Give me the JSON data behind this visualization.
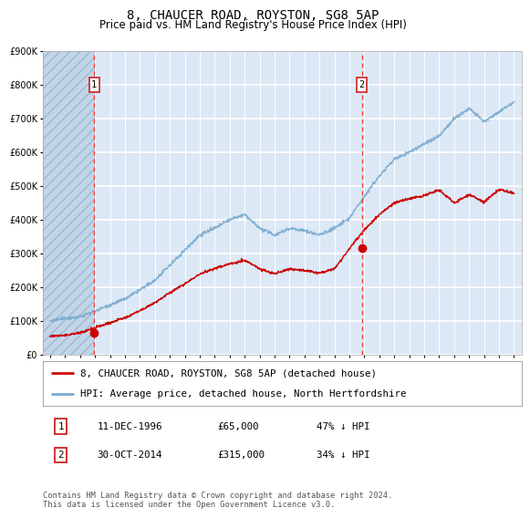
{
  "title": "8, CHAUCER ROAD, ROYSTON, SG8 5AP",
  "subtitle": "Price paid vs. HM Land Registry's House Price Index (HPI)",
  "legend_line1": "8, CHAUCER ROAD, ROYSTON, SG8 5AP (detached house)",
  "legend_line2": "HPI: Average price, detached house, North Hertfordshire",
  "footnote": "Contains HM Land Registry data © Crown copyright and database right 2024.\nThis data is licensed under the Open Government Licence v3.0.",
  "ylim": [
    0,
    900000
  ],
  "yticks": [
    0,
    100000,
    200000,
    300000,
    400000,
    500000,
    600000,
    700000,
    800000,
    900000
  ],
  "ytick_labels": [
    "£0",
    "£100K",
    "£200K",
    "£300K",
    "£400K",
    "£500K",
    "£600K",
    "£700K",
    "£800K",
    "£900K"
  ],
  "xlim_start": 1993.5,
  "xlim_end": 2025.5,
  "purchase1_year": 1996.95,
  "purchase1_price": 65000,
  "purchase1_label": "1",
  "purchase1_info": "11-DEC-1996",
  "purchase1_price_str": "£65,000",
  "purchase1_hpi": "47% ↓ HPI",
  "purchase2_year": 2014.83,
  "purchase2_price": 315000,
  "purchase2_label": "2",
  "purchase2_info": "30-OCT-2014",
  "purchase2_price_str": "£315,000",
  "purchase2_hpi": "34% ↓ HPI",
  "line_color_red": "#cc0000",
  "line_color_blue": "#7aaad0",
  "dot_color": "#cc0000",
  "vline_color": "#ee3333",
  "background_color": "#dce8f5",
  "grid_color": "#ffffff",
  "title_fontsize": 10,
  "subtitle_fontsize": 8.5,
  "tick_fontsize": 7,
  "hpi_data_years": [
    1994,
    1995,
    1996,
    1997,
    1998,
    1999,
    2000,
    2001,
    2002,
    2003,
    2004,
    2005,
    2006,
    2007,
    2008,
    2009,
    2010,
    2011,
    2012,
    2013,
    2014,
    2015,
    2016,
    2017,
    2018,
    2019,
    2020,
    2021,
    2022,
    2023,
    2024,
    2025
  ],
  "hpi_values": [
    100000,
    108000,
    112000,
    130000,
    148000,
    165000,
    192000,
    220000,
    265000,
    310000,
    355000,
    375000,
    400000,
    415000,
    375000,
    355000,
    375000,
    368000,
    355000,
    375000,
    405000,
    470000,
    530000,
    580000,
    600000,
    625000,
    648000,
    700000,
    730000,
    690000,
    720000,
    750000
  ],
  "red_line_years": [
    1994,
    1995,
    1996,
    1997,
    1998,
    1999,
    2000,
    2001,
    2002,
    2003,
    2004,
    2005,
    2006,
    2007,
    2008,
    2009,
    2010,
    2011,
    2012,
    2013,
    2014,
    2015,
    2016,
    2017,
    2018,
    2019,
    2020,
    2021,
    2022,
    2023,
    2024,
    2025
  ],
  "red_line_values": [
    55000,
    58000,
    65000,
    80000,
    95000,
    110000,
    130000,
    155000,
    183000,
    210000,
    240000,
    255000,
    270000,
    280000,
    255000,
    240000,
    255000,
    250000,
    242000,
    255000,
    315000,
    370000,
    415000,
    450000,
    462000,
    472000,
    488000,
    450000,
    475000,
    452000,
    490000,
    478000
  ]
}
